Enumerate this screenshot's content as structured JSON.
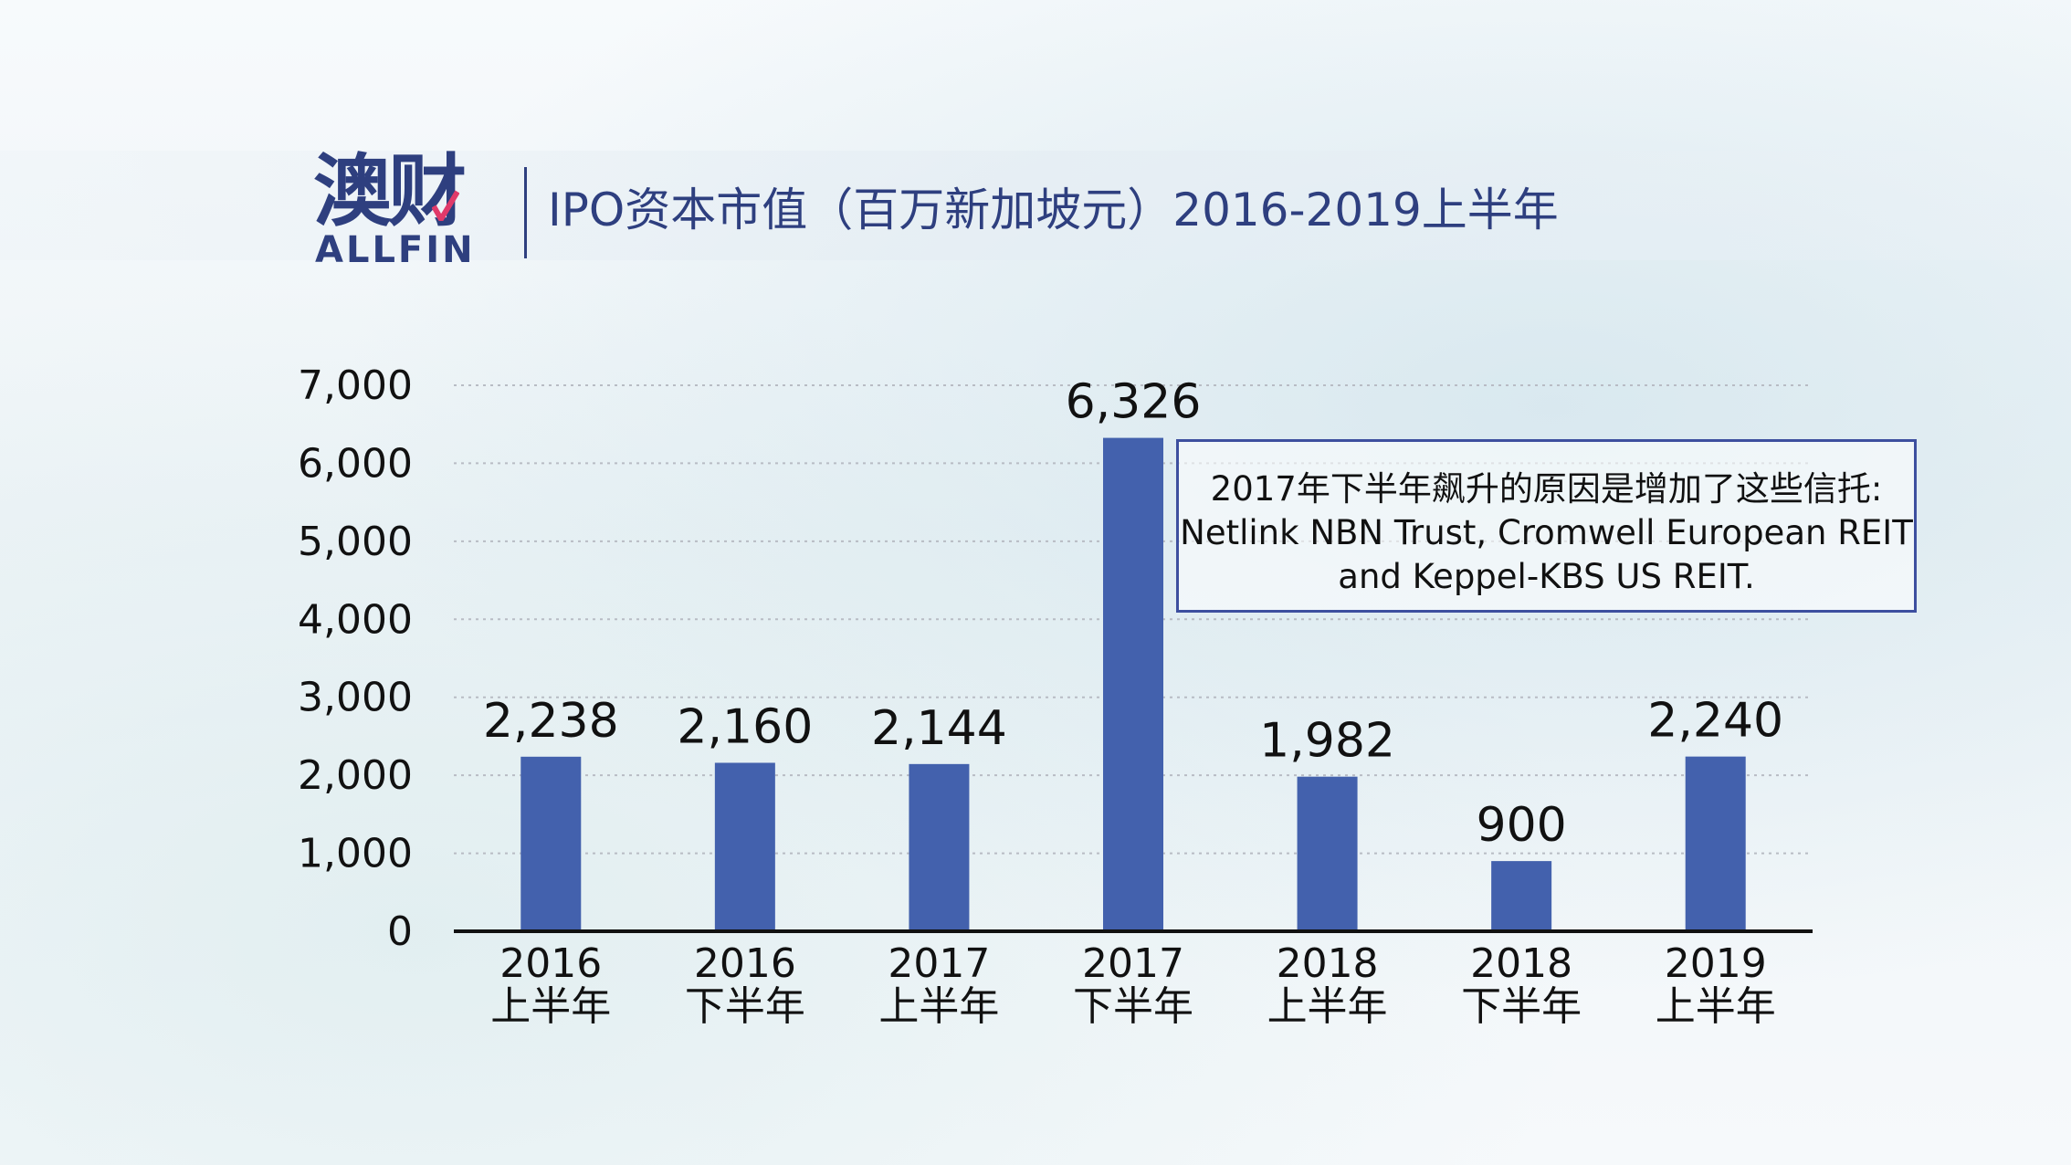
{
  "logo": {
    "cn": "澳财",
    "en": "ALLFIN"
  },
  "title": "IPO资本市值（百万新加坡元）2016-2019上半年",
  "annotation": {
    "lines": [
      "2017年下半年飙升的原因是增加了这些信托:",
      "Netlink NBN Trust, Cromwell European REIT",
      "and Keppel-KBS US REIT."
    ]
  },
  "colors": {
    "bar": "#4361ad",
    "brand": "#2e3f7f",
    "accent": "#e03a6a"
  },
  "chart_data": {
    "type": "bar",
    "title": "IPO资本市值（百万新加坡元）2016-2019上半年",
    "categories": [
      [
        "2016",
        "上半年"
      ],
      [
        "2016",
        "下半年"
      ],
      [
        "2017",
        "上半年"
      ],
      [
        "2017",
        "下半年"
      ],
      [
        "2018",
        "上半年"
      ],
      [
        "2018",
        "下半年"
      ],
      [
        "2019",
        "上半年"
      ]
    ],
    "values": [
      2238,
      2160,
      2144,
      6326,
      1982,
      900,
      2240
    ],
    "value_labels": [
      "2,238",
      "2,160",
      "2,144",
      "6,326",
      "1,982",
      "900",
      "2,240"
    ],
    "y_ticks": [
      0,
      1000,
      2000,
      3000,
      4000,
      5000,
      6000,
      7000
    ],
    "y_tick_labels": [
      "0",
      "1,000",
      "2,000",
      "3,000",
      "4,000",
      "5,000",
      "6,000",
      "7,000"
    ],
    "ylim": [
      0,
      7000
    ],
    "xlabel": "",
    "ylabel": "",
    "grid": true,
    "legend": "none"
  }
}
